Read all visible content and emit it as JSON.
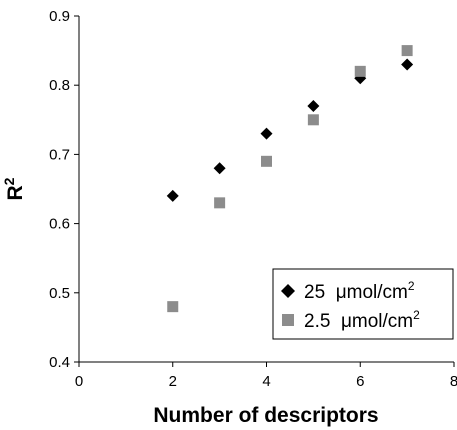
{
  "chart_data": {
    "type": "scatter",
    "title": "",
    "xlabel": "Number of descriptors",
    "ylabel": "R",
    "ylabel_superscript": "2",
    "xlim": [
      0,
      8
    ],
    "ylim": [
      0.4,
      0.9
    ],
    "x_ticks": [
      "0",
      "2",
      "4",
      "6",
      "8"
    ],
    "y_ticks": [
      "0.4",
      "0.5",
      "0.6",
      "0.7",
      "0.8",
      "0.9"
    ],
    "grid": false,
    "legend_position": "bottom-right",
    "series": [
      {
        "name": "25  μmol/cm",
        "name_superscript": "2",
        "marker": "diamond",
        "color": "#000000",
        "x": [
          2,
          3,
          4,
          5,
          6,
          7
        ],
        "y": [
          0.64,
          0.68,
          0.73,
          0.77,
          0.81,
          0.83
        ]
      },
      {
        "name": "2.5  μmol/cm",
        "name_superscript": "2",
        "marker": "square",
        "color": "#8c8c8c",
        "x": [
          2,
          3,
          4,
          5,
          6,
          7
        ],
        "y": [
          0.48,
          0.63,
          0.69,
          0.75,
          0.82,
          0.85
        ]
      }
    ]
  }
}
